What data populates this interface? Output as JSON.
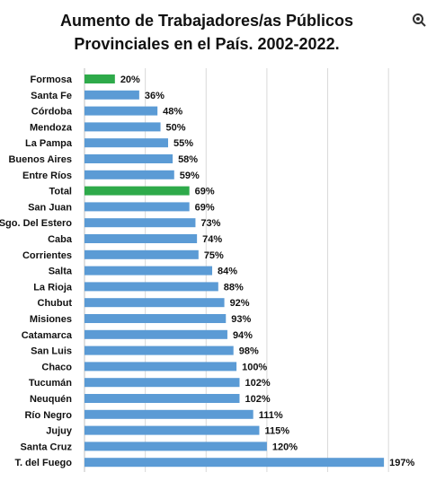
{
  "chart_data": {
    "type": "bar",
    "orientation": "horizontal",
    "title_lines": [
      "Aumento de Trabajadores/as  Públicos",
      "Provinciales  en el País. 2002-2022."
    ],
    "categories": [
      "Formosa",
      "Santa Fe",
      "Córdoba",
      "Mendoza",
      "La Pampa",
      "Buenos Aires",
      "Entre Ríos",
      "Total",
      "San Juan",
      "Sgo. Del Estero",
      "Caba",
      "Corrientes",
      "Salta",
      "La Rioja",
      "Chubut",
      "Misiones",
      "Catamarca",
      "San Luis",
      "Chaco",
      "Tucumán",
      "Neuquén",
      "Río Negro",
      "Jujuy",
      "Santa Cruz",
      "T. del Fuego"
    ],
    "values": [
      20,
      36,
      48,
      50,
      55,
      58,
      59,
      69,
      69,
      73,
      74,
      75,
      84,
      88,
      92,
      93,
      94,
      98,
      100,
      102,
      102,
      111,
      115,
      120,
      197
    ],
    "value_labels": [
      "20%",
      "36%",
      "48%",
      "50%",
      "55%",
      "58%",
      "59%",
      "69%",
      "69%",
      "73%",
      "74%",
      "75%",
      "84%",
      "88%",
      "92%",
      "93%",
      "94%",
      "98%",
      "100%",
      "102%",
      "102%",
      "111%",
      "115%",
      "120%",
      "197%"
    ],
    "unit": "%",
    "xlim": [
      0,
      220
    ],
    "grid": "vertical",
    "highlighted_categories": [
      "Formosa",
      "Total"
    ],
    "colors": {
      "bar": "#5b9bd5",
      "bar_highlight": "#2eaa4a",
      "grid": "#d9d9d9"
    }
  }
}
